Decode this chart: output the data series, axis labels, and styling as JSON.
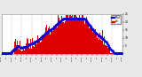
{
  "bg_color": "#e8e8e8",
  "plot_bg_color": "#ffffff",
  "bar_color": "#dd0000",
  "median_color": "#0000dd",
  "grid_color": "#bbbbbb",
  "num_points": 288,
  "ylim": [
    0,
    25
  ],
  "ytick_vals": [
    5,
    10,
    15,
    20,
    25
  ],
  "legend_median_color": "#0000ee",
  "legend_bar_color": "#dd0000"
}
